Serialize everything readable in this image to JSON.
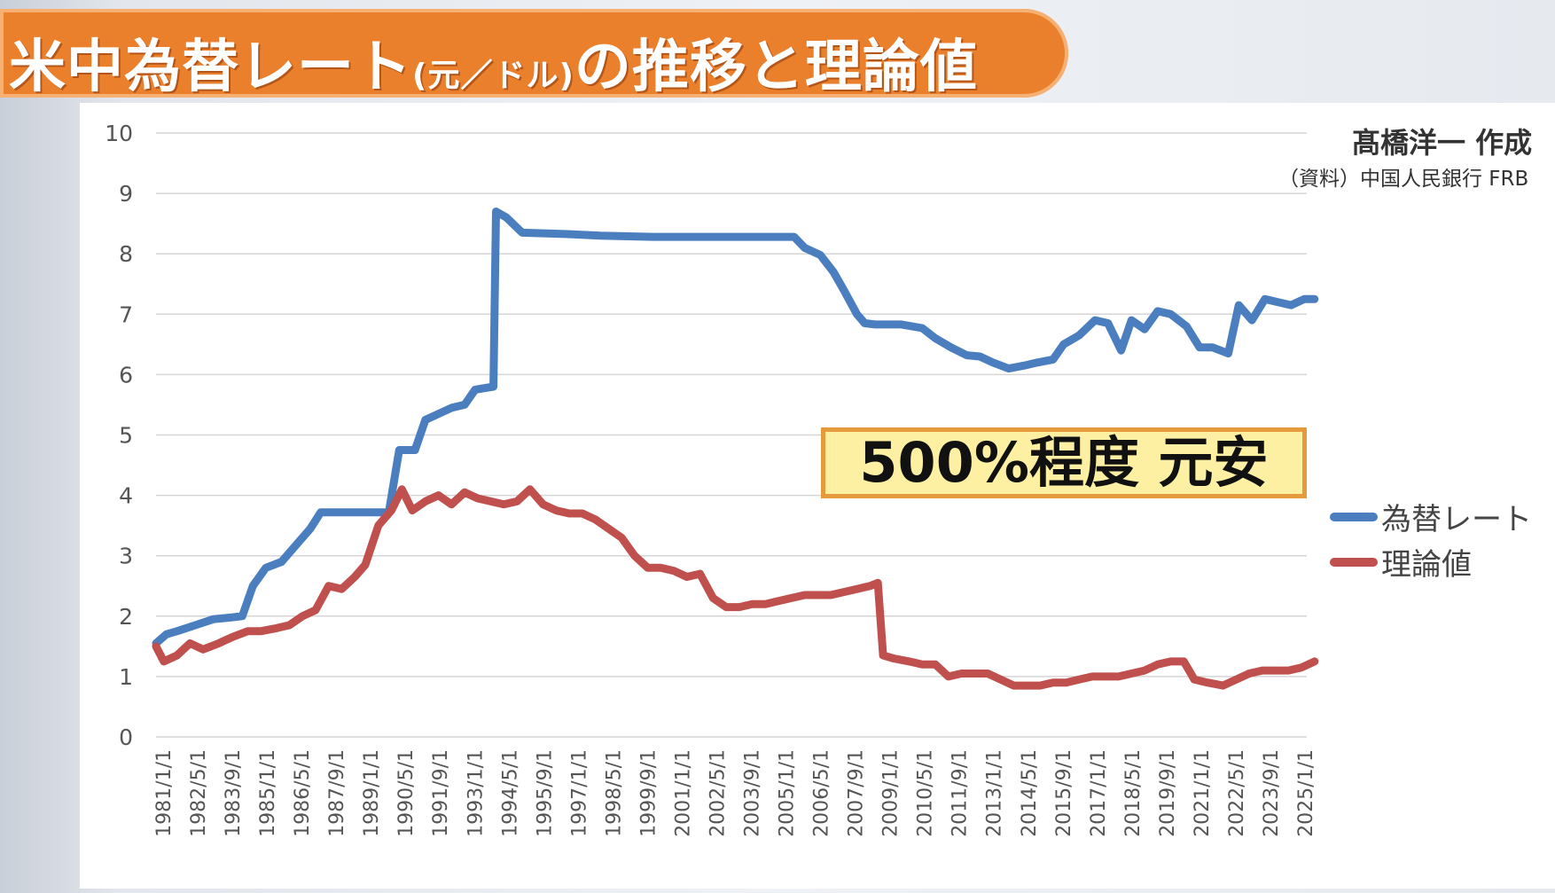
{
  "header": {
    "title_main": "米中為替レート",
    "title_paren": "(元／ドル)",
    "title_rest": "の推移と理論値"
  },
  "credit": {
    "author": "髙橋洋一 作成",
    "source": "（資料）中国人民銀行 FRB"
  },
  "annotation": "500%程度 元安",
  "colors": {
    "title_bg": "#ea7f2c",
    "exchange_rate": "#4a7ebf",
    "theoretical": "#c0504d",
    "annotation_bg": "#fdf0a3",
    "annotation_border": "#e59a3c"
  },
  "chart_data": {
    "type": "line",
    "ylim": [
      0,
      10
    ],
    "y_ticks": [
      "0",
      "1",
      "2",
      "3",
      "4",
      "5",
      "6",
      "7",
      "8",
      "9",
      "10"
    ],
    "x_tick_labels": [
      "1981/1/1",
      "1982/5/1",
      "1983/9/1",
      "1985/1/1",
      "1986/5/1",
      "1987/9/1",
      "1989/1/1",
      "1990/5/1",
      "1991/9/1",
      "1993/1/1",
      "1994/5/1",
      "1995/9/1",
      "1997/1/1",
      "1998/5/1",
      "1999/9/1",
      "2001/1/1",
      "2002/5/1",
      "2003/9/1",
      "2005/1/1",
      "2006/5/1",
      "2007/9/1",
      "2009/1/1",
      "2010/5/1",
      "2011/9/1",
      "2013/1/1",
      "2014/5/1",
      "2015/9/1",
      "2017/1/1",
      "2018/5/1",
      "2019/9/1",
      "2021/1/1",
      "2022/5/1",
      "2023/9/1",
      "2025/1/1"
    ],
    "legend_position": "right",
    "grid": true,
    "series": [
      {
        "name": "為替レート",
        "color": "#4a7ebf",
        "x": [
          1981.0,
          1981.4,
          1981.8,
          1982.5,
          1983.2,
          1983.9,
          1984.3,
          1984.7,
          1985.2,
          1985.8,
          1986.4,
          1986.9,
          1987.3,
          1988.0,
          1989.0,
          1989.9,
          1990.3,
          1990.9,
          1991.3,
          1991.8,
          1992.3,
          1992.8,
          1993.2,
          1993.9,
          1994.0,
          1994.4,
          1995.0,
          1996.5,
          1998.0,
          2000.0,
          2003.0,
          2005.4,
          2005.8,
          2006.4,
          2006.9,
          2007.3,
          2007.8,
          2008.1,
          2008.5,
          2009.5,
          2010.3,
          2010.8,
          2011.4,
          2012.0,
          2012.5,
          2013.0,
          2013.6,
          2014.2,
          2014.7,
          2015.3,
          2015.7,
          2016.3,
          2016.9,
          2017.4,
          2017.9,
          2018.3,
          2018.8,
          2019.3,
          2019.8,
          2020.4,
          2020.9,
          2021.4,
          2022.0,
          2022.4,
          2022.9,
          2023.4,
          2023.9,
          2024.4,
          2024.9,
          2025.3
        ],
        "y": [
          1.55,
          1.7,
          1.75,
          1.85,
          1.95,
          1.98,
          2.0,
          2.5,
          2.8,
          2.9,
          3.2,
          3.45,
          3.72,
          3.72,
          3.72,
          3.72,
          4.75,
          4.75,
          5.25,
          5.35,
          5.45,
          5.5,
          5.75,
          5.8,
          8.7,
          8.6,
          8.35,
          8.33,
          8.3,
          8.28,
          8.28,
          8.28,
          8.1,
          7.98,
          7.7,
          7.4,
          7.0,
          6.85,
          6.83,
          6.83,
          6.77,
          6.6,
          6.45,
          6.32,
          6.3,
          6.2,
          6.1,
          6.15,
          6.2,
          6.25,
          6.5,
          6.65,
          6.9,
          6.85,
          6.4,
          6.9,
          6.75,
          7.05,
          7.0,
          6.8,
          6.45,
          6.45,
          6.35,
          7.15,
          6.9,
          7.25,
          7.2,
          7.15,
          7.25,
          7.25
        ]
      },
      {
        "name": "理論値",
        "color": "#c0504d",
        "x": [
          1981.0,
          1981.3,
          1981.8,
          1982.3,
          1982.8,
          1983.4,
          1983.9,
          1984.5,
          1985.0,
          1985.6,
          1986.1,
          1986.6,
          1987.1,
          1987.6,
          1988.1,
          1988.6,
          1989.0,
          1989.5,
          1990.0,
          1990.4,
          1990.8,
          1991.3,
          1991.8,
          1992.3,
          1992.8,
          1993.3,
          1993.8,
          1994.3,
          1994.8,
          1995.3,
          1995.8,
          1996.3,
          1996.8,
          1997.3,
          1997.8,
          1998.3,
          1998.8,
          1999.3,
          1999.8,
          2000.3,
          2000.8,
          2001.3,
          2001.8,
          2002.3,
          2002.8,
          2003.3,
          2003.8,
          2004.3,
          2004.8,
          2005.3,
          2005.8,
          2006.3,
          2006.8,
          2007.3,
          2007.8,
          2008.3,
          2008.6,
          2008.8,
          2009.2,
          2009.8,
          2010.3,
          2010.8,
          2011.3,
          2011.8,
          2012.3,
          2012.8,
          2013.3,
          2013.8,
          2014.3,
          2014.8,
          2015.3,
          2015.8,
          2016.3,
          2016.8,
          2017.3,
          2017.8,
          2018.3,
          2018.8,
          2019.3,
          2019.8,
          2020.3,
          2020.7,
          2021.2,
          2021.8,
          2022.3,
          2022.8,
          2023.3,
          2023.8,
          2024.3,
          2024.8,
          2025.3
        ],
        "y": [
          1.5,
          1.25,
          1.35,
          1.55,
          1.45,
          1.55,
          1.65,
          1.75,
          1.75,
          1.8,
          1.85,
          2.0,
          2.1,
          2.5,
          2.45,
          2.65,
          2.85,
          3.5,
          3.75,
          4.1,
          3.75,
          3.9,
          4.0,
          3.85,
          4.05,
          3.95,
          3.9,
          3.85,
          3.9,
          4.1,
          3.85,
          3.75,
          3.7,
          3.7,
          3.6,
          3.45,
          3.3,
          3.0,
          2.8,
          2.8,
          2.75,
          2.65,
          2.7,
          2.3,
          2.15,
          2.15,
          2.2,
          2.2,
          2.25,
          2.3,
          2.35,
          2.35,
          2.35,
          2.4,
          2.45,
          2.5,
          2.55,
          1.35,
          1.3,
          1.25,
          1.2,
          1.2,
          1.0,
          1.05,
          1.05,
          1.05,
          0.95,
          0.85,
          0.85,
          0.85,
          0.9,
          0.9,
          0.95,
          1.0,
          1.0,
          1.0,
          1.05,
          1.1,
          1.2,
          1.25,
          1.25,
          0.95,
          0.9,
          0.85,
          0.95,
          1.05,
          1.1,
          1.1,
          1.1,
          1.15,
          1.25
        ]
      }
    ]
  }
}
